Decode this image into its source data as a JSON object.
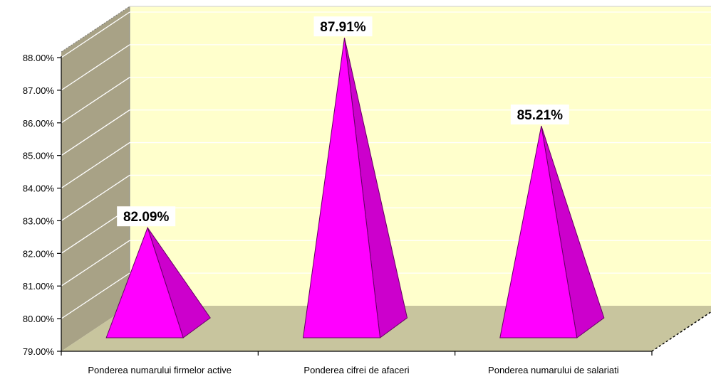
{
  "chart_data": {
    "type": "bar",
    "shape": "pyramid",
    "title": "",
    "xlabel": "",
    "ylabel": "",
    "categories": [
      "Ponderea numarului firmelor active",
      "Ponderea cifrei de afaceri",
      "Ponderea numarului de salariati"
    ],
    "values": [
      82.09,
      87.91,
      85.21
    ],
    "data_labels": [
      "82.09%",
      "87.91%",
      "85.21%"
    ],
    "ylim": [
      79,
      88
    ],
    "yticks": [
      79,
      80,
      81,
      82,
      83,
      84,
      85,
      86,
      87,
      88
    ],
    "ytick_labels": [
      "79.00%",
      "80.00%",
      "81.00%",
      "82.00%",
      "83.00%",
      "84.00%",
      "85.00%",
      "86.00%",
      "87.00%",
      "88.00%"
    ],
    "grid": true,
    "legend": "none",
    "colors": {
      "back_wall": "#ffffcc",
      "side_wall": "#a8a286",
      "floor": "#c8c59e",
      "pyramid_front": "#ff00ff",
      "pyramid_side": "#cc00cc",
      "pyramid_edge": "#660066",
      "gridline": "#ffffff",
      "axis": "#000000"
    }
  }
}
